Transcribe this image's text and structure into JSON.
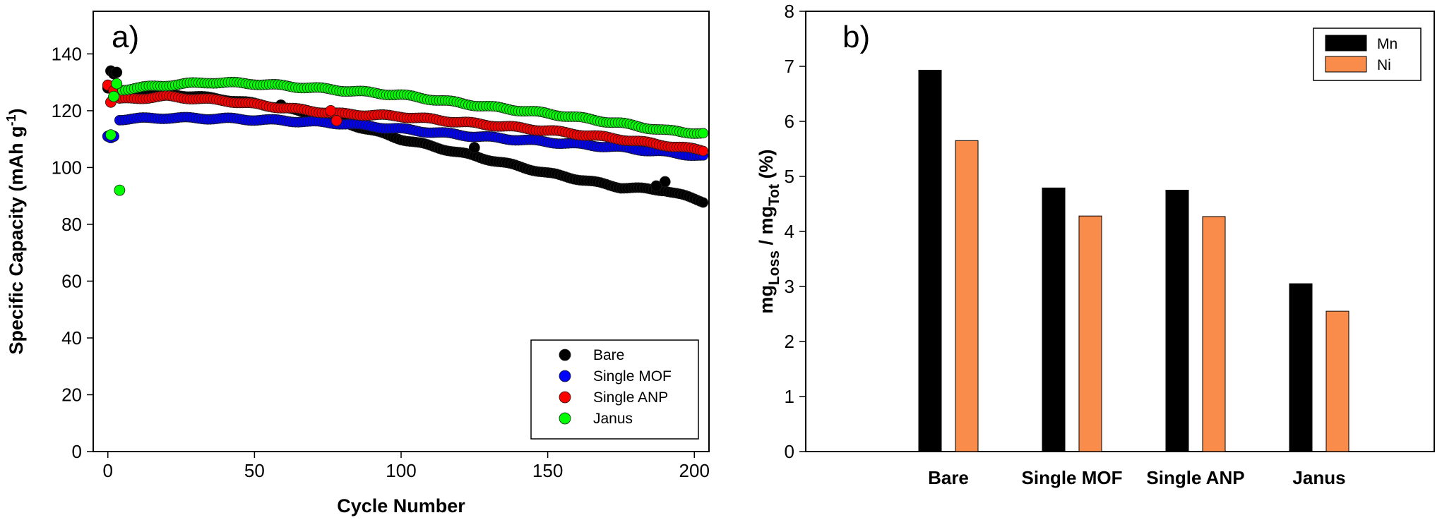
{
  "chart_data": [
    {
      "type": "scatter",
      "panel_label": "a)",
      "xlabel": "Cycle Number",
      "ylabel_main": "Specific Capacity (mAh g",
      "ylabel_sup": "-1",
      "ylabel_end": ")",
      "xlim": [
        -5,
        205
      ],
      "ylim": [
        0,
        155
      ],
      "xticks": [
        0,
        50,
        100,
        150,
        200
      ],
      "yticks": [
        0,
        20,
        40,
        60,
        80,
        100,
        120,
        140
      ],
      "grid": false,
      "legend_position": "bottom-right",
      "series": [
        {
          "name": "Bare",
          "color": "#000000",
          "initial_points": [
            [
              0,
              128
            ],
            [
              1,
              134
            ],
            [
              2,
              133
            ],
            [
              3,
              133.5
            ]
          ],
          "curve": [
            [
              4,
              127
            ],
            [
              20,
              126
            ],
            [
              40,
              124
            ],
            [
              60,
              121
            ],
            [
              80,
              116
            ],
            [
              100,
              110
            ],
            [
              125,
              104
            ],
            [
              150,
              98
            ],
            [
              175,
              93
            ],
            [
              190,
              92
            ],
            [
              203,
              88
            ]
          ],
          "extra_points": [
            [
              59,
              122
            ],
            [
              125,
              107
            ],
            [
              190,
              95
            ],
            [
              187,
              93.5
            ]
          ]
        },
        {
          "name": "Single MOF",
          "color": "#0000ff",
          "initial_points": [
            [
              0,
              111
            ],
            [
              1,
              110.5
            ],
            [
              2,
              111
            ]
          ],
          "curve": [
            [
              4,
              117
            ],
            [
              20,
              117.5
            ],
            [
              40,
              117.2
            ],
            [
              60,
              116.5
            ],
            [
              80,
              115.5
            ],
            [
              100,
              113.5
            ],
            [
              125,
              111
            ],
            [
              150,
              109
            ],
            [
              175,
              107
            ],
            [
              203,
              104
            ]
          ],
          "extra_points": []
        },
        {
          "name": "Single ANP",
          "color": "#ff0000",
          "initial_points": [
            [
              0,
              129
            ],
            [
              1,
              123
            ],
            [
              2,
              127
            ]
          ],
          "curve": [
            [
              4,
              124
            ],
            [
              20,
              125
            ],
            [
              40,
              123.5
            ],
            [
              60,
              121
            ],
            [
              78,
              119
            ],
            [
              100,
              118
            ],
            [
              125,
              115.5
            ],
            [
              150,
              113
            ],
            [
              175,
              110
            ],
            [
              203,
              106
            ]
          ],
          "extra_points": [
            [
              76,
              120
            ],
            [
              78,
              116.5
            ]
          ]
        },
        {
          "name": "Janus",
          "color": "#00ff00",
          "initial_points": [
            [
              1,
              111.5
            ],
            [
              2,
              125
            ],
            [
              3,
              129.5
            ],
            [
              4,
              92
            ]
          ],
          "curve": [
            [
              5,
              127.5
            ],
            [
              20,
              129
            ],
            [
              35,
              130
            ],
            [
              50,
              129.5
            ],
            [
              70,
              128
            ],
            [
              100,
              125.5
            ],
            [
              125,
              122
            ],
            [
              150,
              119
            ],
            [
              175,
              115.5
            ],
            [
              190,
              113
            ],
            [
              203,
              112
            ]
          ],
          "extra_points": []
        }
      ]
    },
    {
      "type": "bar",
      "panel_label": "b)",
      "ylabel_parts": [
        "mg",
        "Loss",
        " / mg",
        "Tot",
        " (%)"
      ],
      "categories": [
        "Bare",
        "Single MOF",
        "Single ANP",
        "Janus"
      ],
      "ylim": [
        0,
        8
      ],
      "yticks": [
        0,
        1,
        2,
        3,
        4,
        5,
        6,
        7,
        8
      ],
      "grid": false,
      "legend_position": "top-right",
      "series": [
        {
          "name": "Mn",
          "color": "#000000",
          "values": [
            6.93,
            4.79,
            4.75,
            3.05
          ]
        },
        {
          "name": "Ni",
          "color": "#f98b4b",
          "values": [
            5.65,
            4.28,
            4.27,
            2.55
          ]
        }
      ]
    }
  ]
}
